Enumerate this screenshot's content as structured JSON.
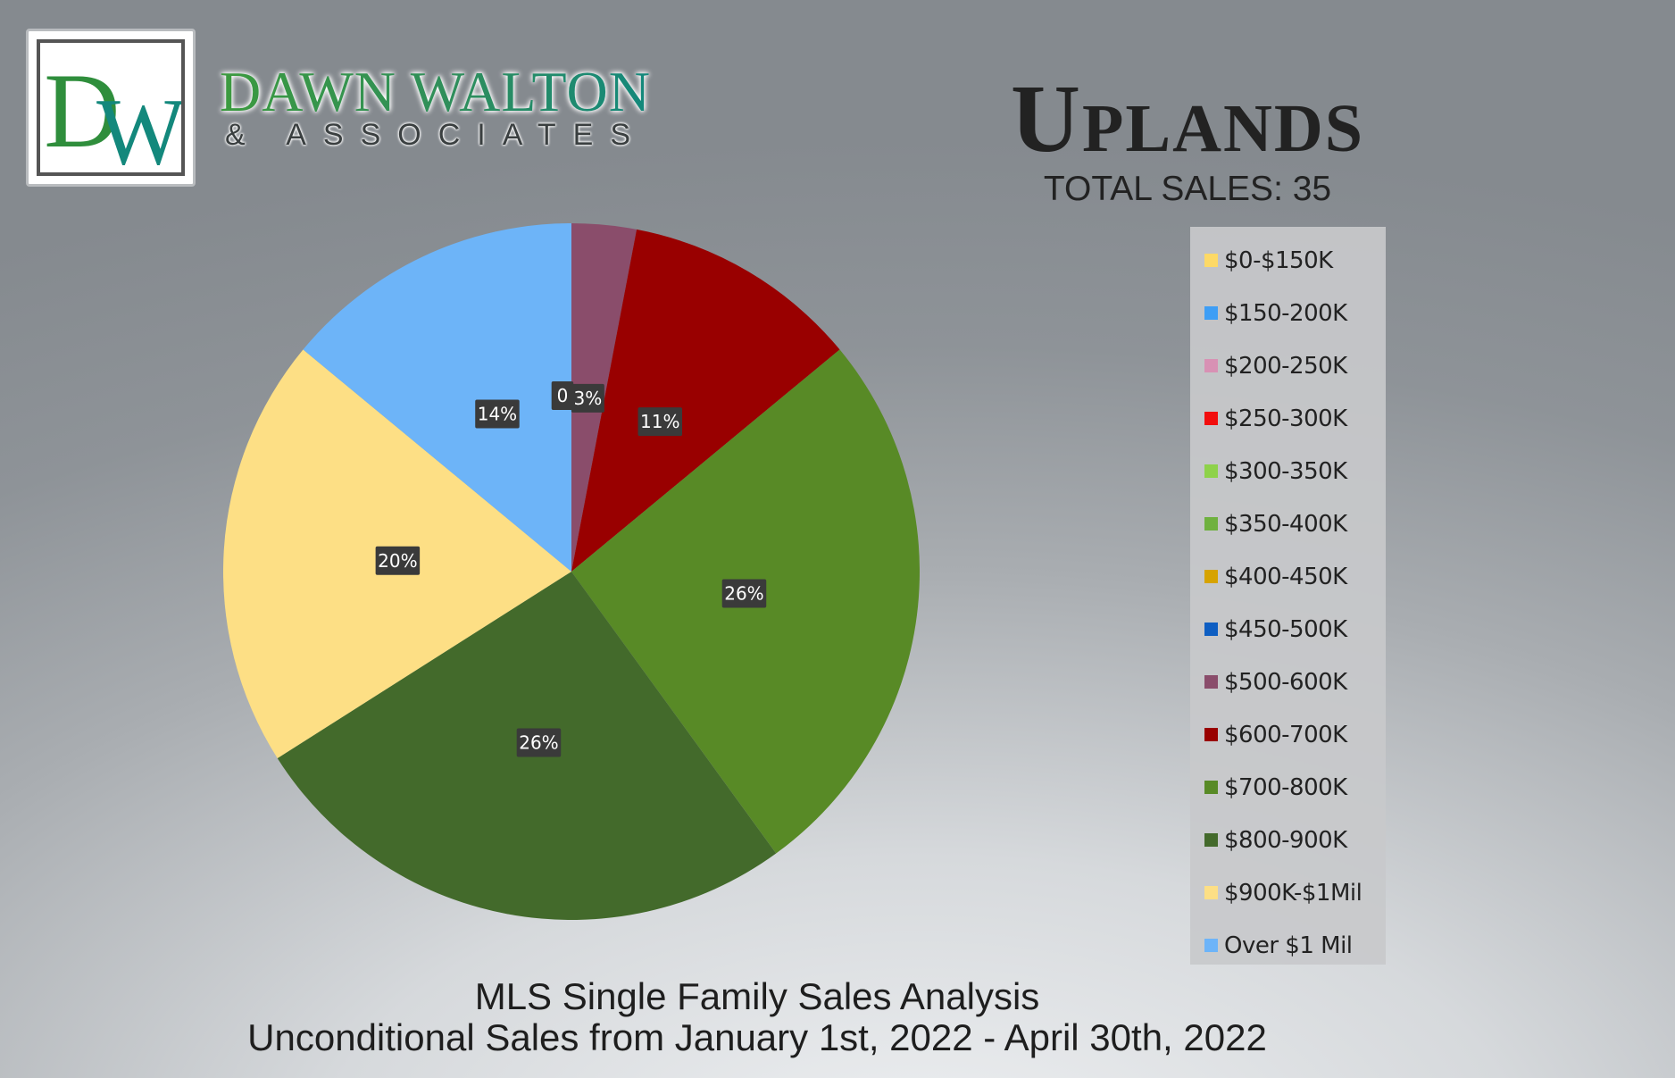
{
  "brand": {
    "logo_letters": "DW",
    "name": "DAWN WALTON",
    "sub": "& ASSOCIATES"
  },
  "header": {
    "title": "Uplands",
    "total_sales": "TOTAL SALES: 35"
  },
  "footer": {
    "line1": "MLS Single Family Sales Analysis",
    "line2": "Unconditional Sales from January 1st, 2022 - April 30th, 2022"
  },
  "chart_data": {
    "type": "pie",
    "title": "Uplands",
    "subtitle": "TOTAL SALES: 35",
    "legend_position": "right",
    "start_angle_deg": 0,
    "slices": [
      {
        "label": "$0-$150K",
        "value": 0,
        "color": "#fdd966"
      },
      {
        "label": "$150-200K",
        "value": 0,
        "color": "#3e9ef5"
      },
      {
        "label": "$200-250K",
        "value": 0,
        "color": "#d891b4"
      },
      {
        "label": "$250-300K",
        "value": 0,
        "color": "#f20d0d"
      },
      {
        "label": "$300-350K",
        "value": 0,
        "color": "#8ed24a"
      },
      {
        "label": "$350-400K",
        "value": 0,
        "color": "#6fb13f"
      },
      {
        "label": "$400-450K",
        "value": 0,
        "color": "#d6a300"
      },
      {
        "label": "$450-500K",
        "value": 0,
        "color": "#0e5ec2"
      },
      {
        "label": "$500-600K",
        "value": 3,
        "color": "#8a4d6b",
        "data_label": "3%"
      },
      {
        "label": "$600-700K",
        "value": 11,
        "color": "#990000",
        "data_label": "11%"
      },
      {
        "label": "$700-800K",
        "value": 26,
        "color": "#588a26",
        "data_label": "26%"
      },
      {
        "label": "$800-900K",
        "value": 26,
        "color": "#436a2b",
        "data_label": "26%"
      },
      {
        "label": "$900K-$1Mil",
        "value": 20,
        "color": "#fddf85",
        "data_label": "20%"
      },
      {
        "label": "Over $1 Mil",
        "value": 14,
        "color": "#6db4f8",
        "data_label": "14%"
      }
    ],
    "overlapped_zero_label": "0"
  }
}
